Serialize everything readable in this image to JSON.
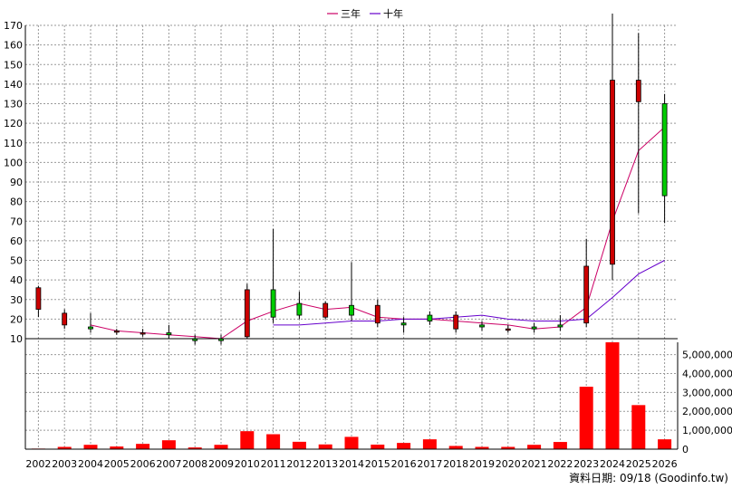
{
  "legend": [
    {
      "label": "三年",
      "color": "#cc0066"
    },
    {
      "label": "十年",
      "color": "#6600cc"
    }
  ],
  "source_note": "資料日期: 09/18 (Goodinfo.tw)",
  "chart_data": {
    "type": "candlestick",
    "years": [
      "2002",
      "2003",
      "2004",
      "2005",
      "2006",
      "2007",
      "2008",
      "2009",
      "2010",
      "2011",
      "2012",
      "2013",
      "2014",
      "2015",
      "2016",
      "2017",
      "2018",
      "2019",
      "2020",
      "2021",
      "2022",
      "2023",
      "2024",
      "2025",
      "2026"
    ],
    "price_axis": {
      "min": 10,
      "max": 170,
      "ticks": [
        10,
        20,
        30,
        40,
        50,
        60,
        70,
        80,
        90,
        100,
        110,
        120,
        130,
        140,
        150,
        160,
        170
      ]
    },
    "volume_axis": {
      "min": 0,
      "max": 5000000,
      "ticks": [
        0,
        1000000,
        2000000,
        3000000,
        4000000,
        5000000
      ],
      "tick_labels": [
        "0",
        "1,000,000",
        "2,000,000",
        "3,000,000",
        "4,000,000",
        "5,000,000"
      ]
    },
    "candles": [
      {
        "year": "2002",
        "open": 25,
        "close": 36,
        "high": 37,
        "low": 21
      },
      {
        "year": "2003",
        "open": 17,
        "close": 23,
        "high": 25,
        "low": 15
      },
      {
        "year": "2004",
        "open": 16,
        "close": 15,
        "high": 23,
        "low": 13
      },
      {
        "year": "2005",
        "open": 14,
        "close": 14,
        "high": 15,
        "low": 12
      },
      {
        "year": "2006",
        "open": 13,
        "close": 13,
        "high": 15,
        "low": 11
      },
      {
        "year": "2007",
        "open": 13,
        "close": 12,
        "high": 17,
        "low": 10
      },
      {
        "year": "2008",
        "open": 10,
        "close": 9,
        "high": 12,
        "low": 7
      },
      {
        "year": "2009",
        "open": 10,
        "close": 9,
        "high": 12,
        "low": 7
      },
      {
        "year": "2010",
        "open": 11,
        "close": 35,
        "high": 38,
        "low": 10
      },
      {
        "year": "2011",
        "open": 35,
        "close": 21,
        "high": 66,
        "low": 18
      },
      {
        "year": "2012",
        "open": 28,
        "close": 22,
        "high": 34,
        "low": 20
      },
      {
        "year": "2013",
        "open": 21,
        "close": 28,
        "high": 29,
        "low": 20
      },
      {
        "year": "2014",
        "open": 27,
        "close": 22,
        "high": 49,
        "low": 19
      },
      {
        "year": "2015",
        "open": 18,
        "close": 27,
        "high": 30,
        "low": 16
      },
      {
        "year": "2016",
        "open": 18,
        "close": 17,
        "high": 21,
        "low": 13
      },
      {
        "year": "2017",
        "open": 22,
        "close": 19,
        "high": 24,
        "low": 17
      },
      {
        "year": "2018",
        "open": 15,
        "close": 22,
        "high": 24,
        "low": 13
      },
      {
        "year": "2019",
        "open": 17,
        "close": 16,
        "high": 19,
        "low": 14
      },
      {
        "year": "2020",
        "open": 15,
        "close": 15,
        "high": 17,
        "low": 13
      },
      {
        "year": "2021",
        "open": 16,
        "close": 15,
        "high": 18,
        "low": 13
      },
      {
        "year": "2022",
        "open": 17,
        "close": 16,
        "high": 22,
        "low": 14
      },
      {
        "year": "2023",
        "open": 18,
        "close": 47,
        "high": 61,
        "low": 16
      },
      {
        "year": "2024",
        "open": 48,
        "close": 142,
        "high": 176,
        "low": 40
      },
      {
        "year": "2025",
        "open": 131,
        "close": 142,
        "high": 166,
        "low": 74
      },
      {
        "year": "2026",
        "open": 130,
        "close": 83,
        "high": 135,
        "low": 69
      }
    ],
    "series": [
      {
        "name": "三年",
        "color": "#cc0066",
        "start_index": 2,
        "values": [
          17,
          14,
          13,
          12,
          11,
          10,
          19,
          24,
          28,
          25,
          26,
          21,
          20,
          20,
          19,
          18,
          17,
          15,
          16,
          26,
          70,
          106,
          118
        ]
      },
      {
        "name": "十年",
        "color": "#6600cc",
        "start_index": 9,
        "values": [
          17,
          17,
          18,
          19,
          19,
          20,
          20,
          21,
          22,
          20,
          19,
          19,
          20,
          31,
          43,
          50
        ]
      }
    ],
    "volume": {
      "color": "#ff0000",
      "values": [
        30000,
        120000,
        230000,
        140000,
        280000,
        470000,
        90000,
        230000,
        950000,
        790000,
        390000,
        250000,
        650000,
        240000,
        330000,
        520000,
        170000,
        120000,
        120000,
        230000,
        380000,
        3300000,
        5650000,
        2330000,
        520000
      ]
    }
  }
}
